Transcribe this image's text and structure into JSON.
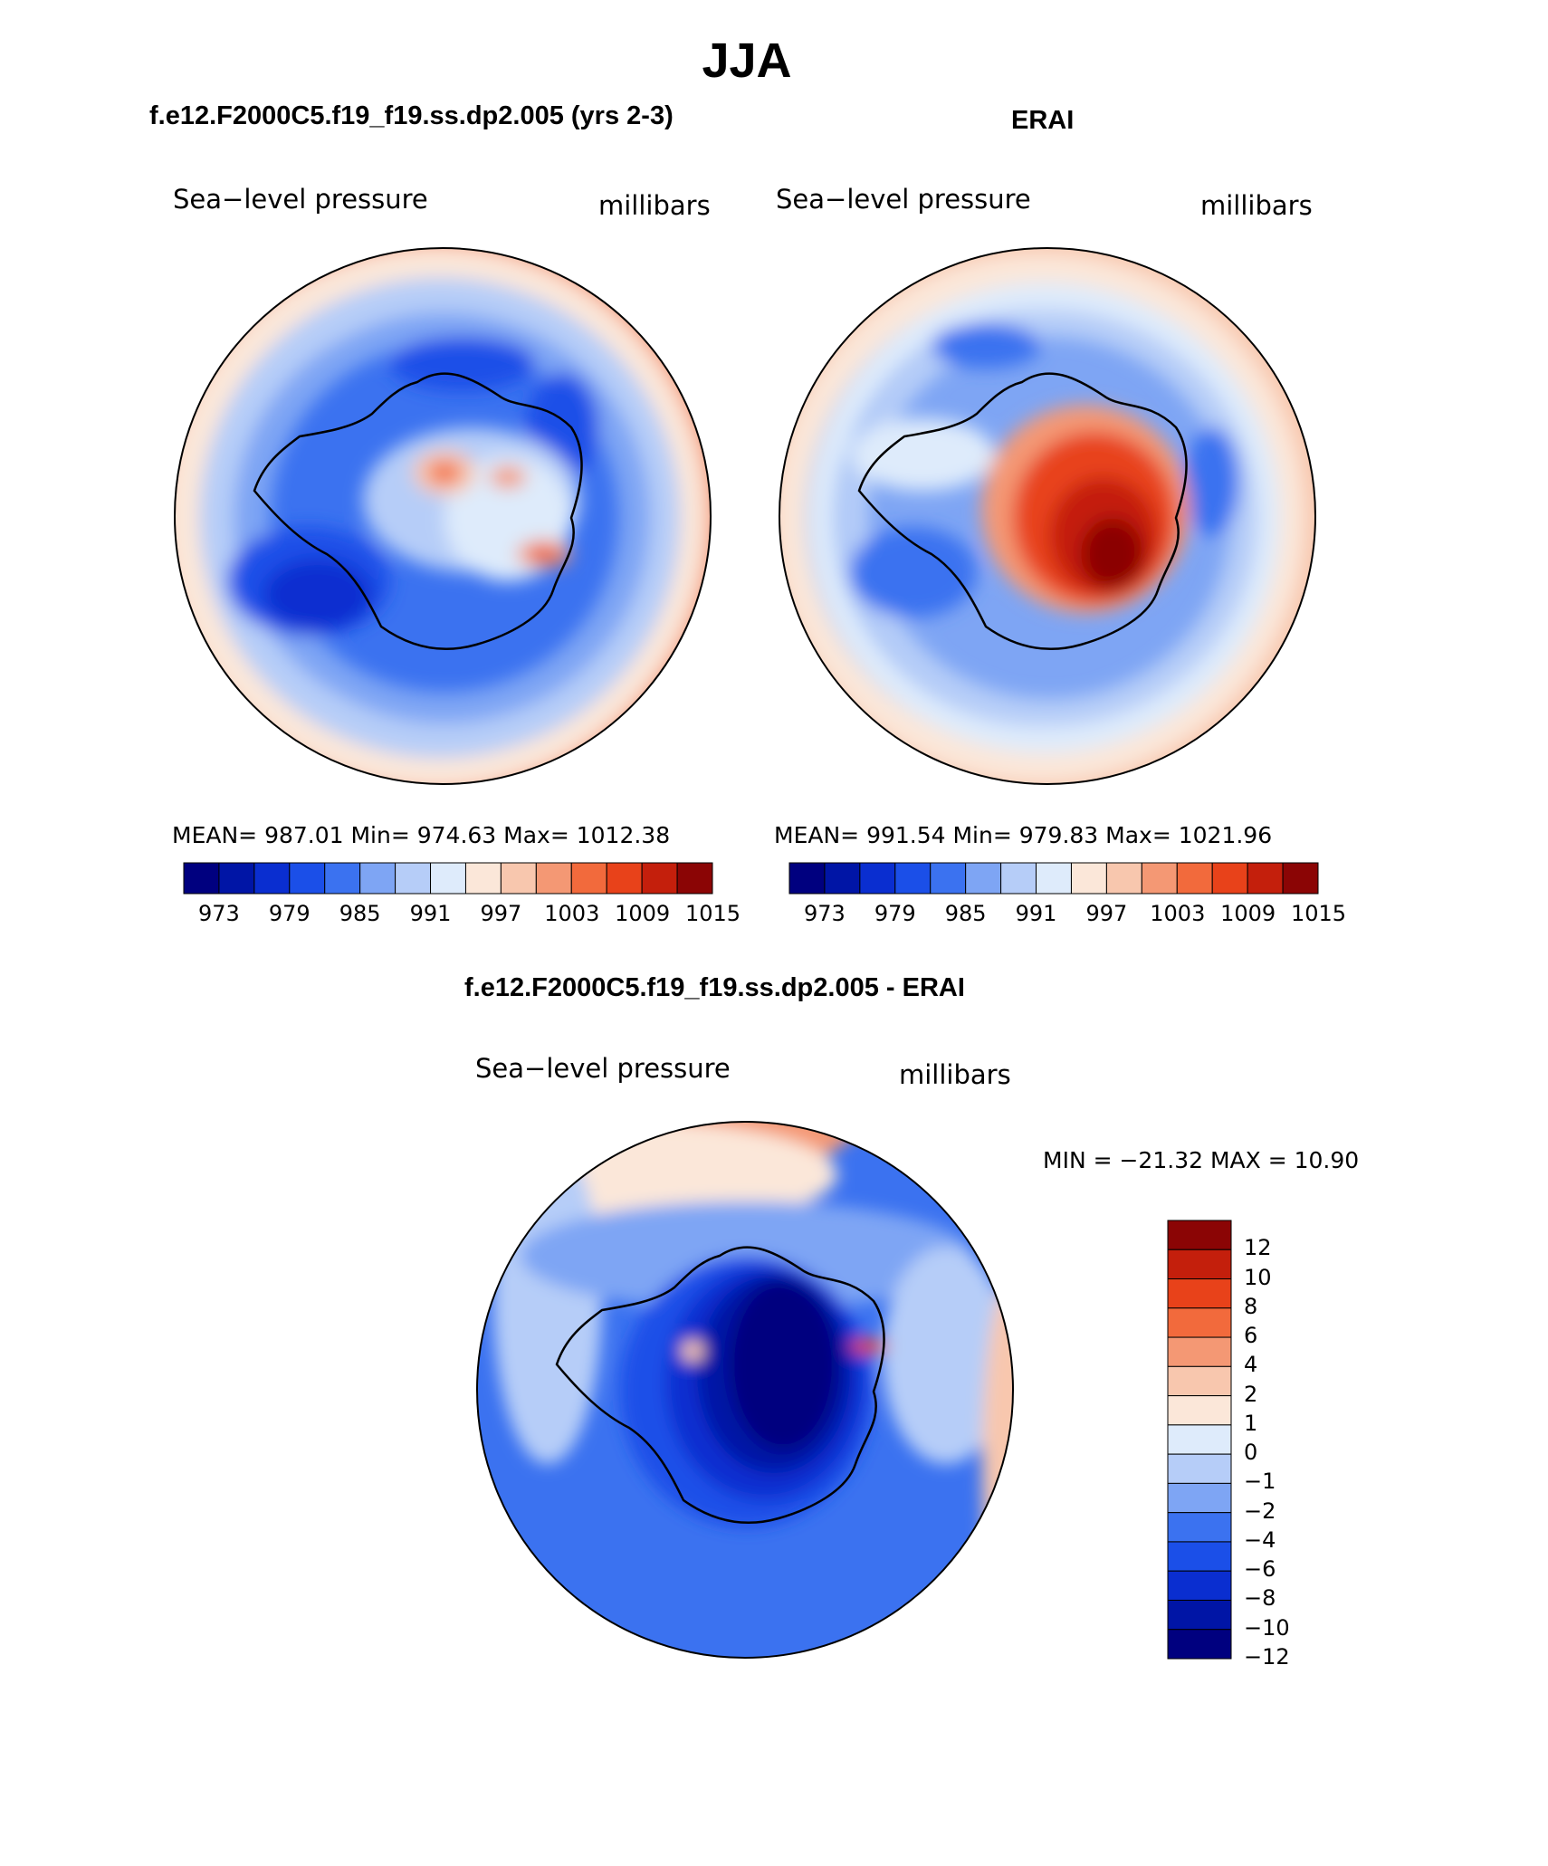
{
  "page": {
    "title": "JJA"
  },
  "panels": [
    {
      "id": "model",
      "header": "f.e12.F2000C5.f19_f19.ss.dp2.005 (yrs 2-3)",
      "variable": "Sea−level pressure",
      "units": "millibars",
      "stats_text": "MEAN= 987.01   Min= 974.63   Max= 1012.38"
    },
    {
      "id": "obs",
      "header": "ERAI",
      "variable": "Sea−level pressure",
      "units": "millibars",
      "stats_text": "MEAN= 991.54   Min= 979.83   Max= 1021.96"
    },
    {
      "id": "diff",
      "header": "f.e12.F2000C5.f19_f19.ss.dp2.005 - ERAI",
      "variable": "Sea−level pressure",
      "units": "millibars",
      "stats_text": "MIN = −21.32 MAX =   10.90"
    }
  ],
  "chart_data": [
    {
      "type": "heatmap",
      "projection": "south polar stereographic",
      "title": "f.e12.F2000C5.f19_f19.ss.dp2.005 (yrs 2-3)",
      "field": "Sea-level pressure",
      "units": "millibars",
      "mean": 987.01,
      "min": 974.63,
      "max": 1012.38,
      "contour_levels": [
        973,
        976,
        979,
        982,
        985,
        988,
        991,
        994,
        997,
        1000,
        1003,
        1006,
        1009,
        1012,
        1015
      ],
      "colorbar_tick_labels": [
        "973",
        "979",
        "985",
        "991",
        "997",
        "1003",
        "1009",
        "1015"
      ]
    },
    {
      "type": "heatmap",
      "projection": "south polar stereographic",
      "title": "ERAI",
      "field": "Sea-level pressure",
      "units": "millibars",
      "mean": 991.54,
      "min": 979.83,
      "max": 1021.96,
      "contour_levels": [
        973,
        976,
        979,
        982,
        985,
        988,
        991,
        994,
        997,
        1000,
        1003,
        1006,
        1009,
        1012,
        1015
      ],
      "colorbar_tick_labels": [
        "973",
        "979",
        "985",
        "991",
        "997",
        "1003",
        "1009",
        "1015"
      ]
    },
    {
      "type": "heatmap",
      "projection": "south polar stereographic",
      "title": "f.e12.F2000C5.f19_f19.ss.dp2.005 - ERAI",
      "field": "Sea-level pressure difference",
      "units": "millibars",
      "min": -21.32,
      "max": 10.9,
      "contour_levels": [
        -12,
        -10,
        -8,
        -6,
        -4,
        -2,
        -1,
        0,
        1,
        2,
        4,
        6,
        8,
        10,
        12
      ],
      "colorbar_tick_labels": [
        "12",
        "10",
        "8",
        "6",
        "4",
        "2",
        "1",
        "0",
        "−1",
        "−2",
        "−4",
        "−6",
        "−8",
        "−10",
        "−12"
      ]
    }
  ],
  "colors": {
    "abs_scale": [
      "#00007f",
      "#0015a6",
      "#0a2ed0",
      "#1b4fe8",
      "#3b72f0",
      "#7ea5f4",
      "#b6cdf8",
      "#deebfb",
      "#fbe7d9",
      "#f8c7ae",
      "#f49874",
      "#f26a3c",
      "#e8421a",
      "#c41f0c",
      "#8b0505"
    ],
    "diff_scale": [
      "#00007f",
      "#0015a6",
      "#0a2ed0",
      "#1b4fe8",
      "#3b72f0",
      "#7ea5f4",
      "#b6cdf8",
      "#deebfb",
      "#fbe7d9",
      "#f8c7ae",
      "#f49874",
      "#f26a3c",
      "#e8421a",
      "#c41f0c",
      "#8b0505"
    ]
  }
}
